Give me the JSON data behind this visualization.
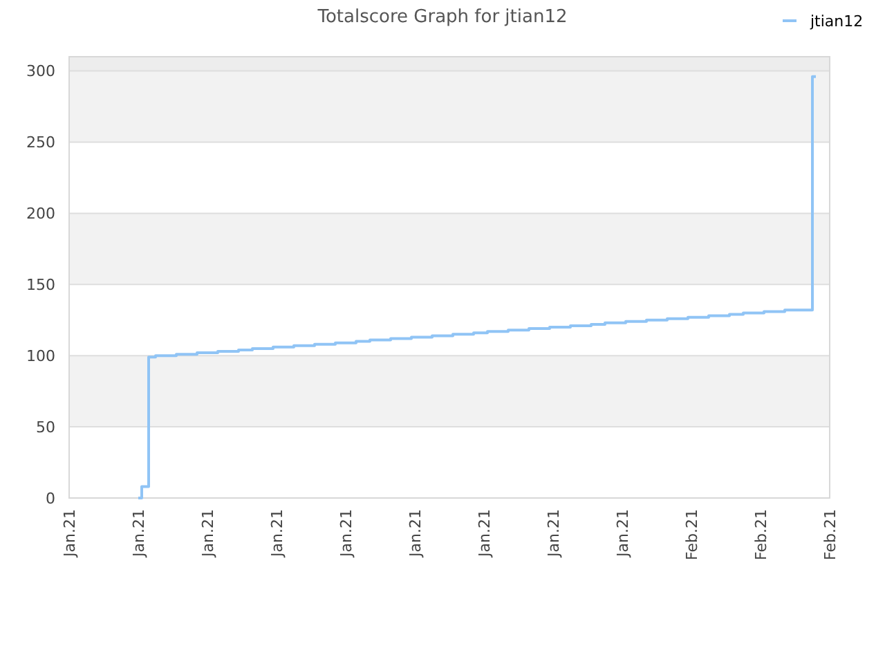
{
  "chart_data": {
    "type": "step",
    "title": "Totalscore Graph for jtian12",
    "categories": [
      "Jan.21",
      null,
      null,
      null,
      null,
      null,
      null,
      null,
      null,
      null,
      "Jan.21",
      null,
      null,
      null,
      null,
      null,
      null,
      null,
      null,
      null,
      "Jan.21",
      null,
      null,
      null,
      null,
      null,
      null,
      null,
      null,
      null,
      "Jan.21",
      null,
      null,
      null,
      null,
      null,
      null,
      null,
      null,
      null,
      "Jan.21",
      null,
      null,
      null,
      null,
      null,
      null,
      null,
      null,
      null,
      "Jan.21",
      null,
      null,
      null,
      null,
      null,
      null,
      null,
      null,
      null,
      "Jan.21",
      null,
      null,
      null,
      null,
      null,
      null,
      null,
      null,
      null,
      "Jan.21",
      null,
      null,
      null,
      null,
      null,
      null,
      null,
      null,
      null,
      "Jan.21",
      null,
      null,
      null,
      null,
      null,
      null,
      null,
      null,
      null,
      "Feb.21",
      null,
      null,
      null,
      null,
      null,
      null,
      null,
      null,
      null,
      "Feb.21",
      null,
      null,
      null,
      null,
      null,
      null,
      null,
      null,
      null,
      "Feb.21"
    ],
    "series": [
      {
        "name": "jtian12",
        "color": "#90c4f5",
        "values": [
          null,
          null,
          null,
          null,
          null,
          null,
          null,
          null,
          null,
          null,
          0,
          8,
          99,
          100,
          100,
          100,
          101,
          101,
          101,
          102,
          102,
          102,
          103,
          103,
          103,
          104,
          104,
          105,
          105,
          105,
          106,
          106,
          106,
          107,
          107,
          107,
          108,
          108,
          108,
          109,
          109,
          109,
          110,
          110,
          111,
          111,
          111,
          112,
          112,
          112,
          113,
          113,
          113,
          114,
          114,
          114,
          115,
          115,
          115,
          116,
          116,
          117,
          117,
          117,
          118,
          118,
          118,
          119,
          119,
          119,
          120,
          120,
          120,
          121,
          121,
          121,
          122,
          122,
          123,
          123,
          123,
          124,
          124,
          124,
          125,
          125,
          125,
          126,
          126,
          126,
          127,
          127,
          127,
          128,
          128,
          128,
          129,
          129,
          130,
          130,
          130,
          131,
          131,
          131,
          132,
          132,
          132,
          132,
          296,
          null,
          null
        ]
      }
    ],
    "ylim": [
      0,
      310
    ],
    "yticks": [
      0,
      50,
      100,
      150,
      200,
      250,
      300
    ],
    "bands": [
      {
        "axis": "y",
        "from": 50,
        "to": 100,
        "color": "#f2f2f2"
      },
      {
        "axis": "y",
        "from": 150,
        "to": 200,
        "color": "#f2f2f2"
      },
      {
        "axis": "y",
        "from": 250,
        "to": 300,
        "color": "#f2f2f2"
      },
      {
        "axis": "y",
        "from": 300,
        "to": 310,
        "color": "#ededed"
      }
    ],
    "grid": "y",
    "legend": "top right",
    "marker": "none",
    "line_style": "solid"
  }
}
